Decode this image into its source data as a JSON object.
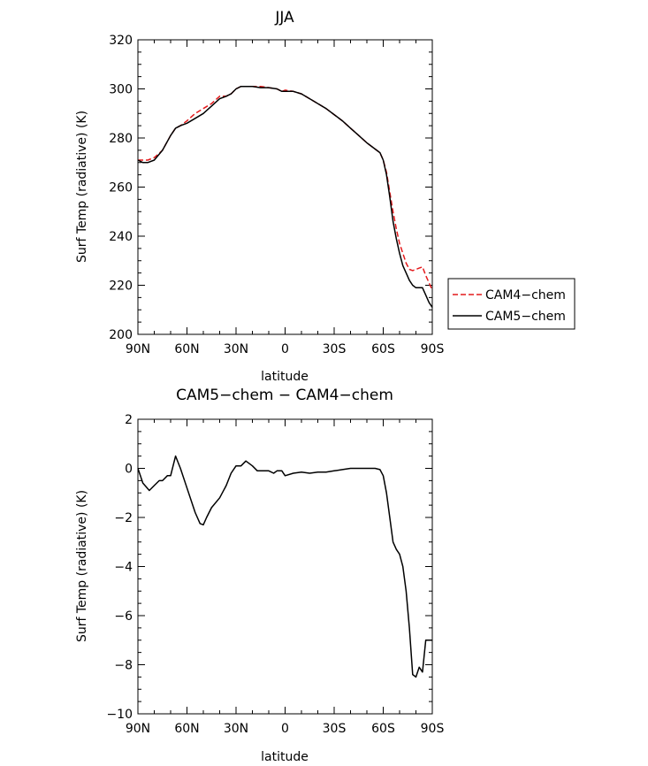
{
  "chart_data": [
    {
      "type": "line",
      "title": "JJA",
      "xlabel": "latitude",
      "ylabel": "Surf Temp (radiative) (K)",
      "xlim": [
        90,
        -90
      ],
      "ylim": [
        200,
        320
      ],
      "x_ticks": [
        90,
        60,
        30,
        0,
        -30,
        -60,
        -90
      ],
      "x_tick_labels": [
        "90N",
        "60N",
        "30N",
        "0",
        "30S",
        "60S",
        "90S"
      ],
      "y_ticks": [
        200,
        220,
        240,
        260,
        280,
        300,
        320
      ],
      "y_tick_labels": [
        "200",
        "220",
        "240",
        "260",
        "280",
        "300",
        "320"
      ],
      "legend_position": "right",
      "series": [
        {
          "name": "CAM4−chem",
          "color": "#e41a1c",
          "dash": "dashed",
          "x": [
            90,
            87,
            84,
            80,
            75,
            70,
            67,
            64,
            60,
            55,
            50,
            45,
            40,
            36,
            33,
            30,
            27,
            24,
            20,
            15,
            10,
            5,
            2,
            0,
            -5,
            -10,
            -15,
            -20,
            -25,
            -30,
            -35,
            -40,
            -45,
            -50,
            -55,
            -58,
            -60,
            -62,
            -64,
            -66,
            -68,
            -70,
            -72,
            -74,
            -76,
            -78,
            -80,
            -82,
            -84,
            -86,
            -88,
            -90
          ],
          "values": [
            271,
            271,
            271,
            272,
            275,
            281,
            284,
            285,
            287,
            290,
            292,
            294,
            297,
            297,
            298,
            300,
            301,
            301,
            301,
            301,
            300.5,
            300,
            299,
            299.5,
            299,
            298,
            296,
            294,
            292,
            289.5,
            287,
            284,
            281,
            278,
            275.5,
            274,
            271,
            266,
            258,
            250,
            243,
            237,
            233,
            229,
            226.5,
            226,
            226.5,
            227,
            227.5,
            224,
            221,
            218
          ]
        },
        {
          "name": "CAM5−chem",
          "color": "#000000",
          "dash": "solid",
          "x": [
            90,
            87,
            84,
            80,
            75,
            70,
            67,
            64,
            60,
            55,
            50,
            45,
            40,
            36,
            33,
            30,
            27,
            24,
            20,
            15,
            10,
            5,
            2,
            0,
            -5,
            -10,
            -15,
            -20,
            -25,
            -30,
            -35,
            -40,
            -45,
            -50,
            -55,
            -58,
            -60,
            -62,
            -64,
            -66,
            -68,
            -70,
            -72,
            -74,
            -76,
            -78,
            -80,
            -82,
            -84,
            -86,
            -88,
            -90
          ],
          "values": [
            271,
            270,
            270,
            271,
            275,
            281,
            284,
            285,
            286,
            288,
            290,
            293,
            296,
            297,
            298,
            300,
            301,
            301,
            301,
            300.5,
            300.5,
            300,
            299,
            299,
            299,
            298,
            296,
            294,
            292,
            289.5,
            287,
            284,
            281,
            278,
            275.5,
            274,
            271,
            265,
            256,
            246,
            239,
            233,
            228,
            225,
            222,
            220,
            219,
            219,
            219,
            216,
            213,
            211
          ]
        }
      ]
    },
    {
      "type": "line",
      "title": "CAM5−chem − CAM4−chem",
      "xlabel": "latitude",
      "ylabel": "Surf Temp (radiative) (K)",
      "xlim": [
        90,
        -90
      ],
      "ylim": [
        -10,
        2
      ],
      "x_ticks": [
        90,
        60,
        30,
        0,
        -30,
        -60,
        -90
      ],
      "x_tick_labels": [
        "90N",
        "60N",
        "30N",
        "0",
        "30S",
        "60S",
        "90S"
      ],
      "y_ticks": [
        -10,
        -8,
        -6,
        -4,
        -2,
        0,
        2
      ],
      "y_tick_labels": [
        "−10",
        "−8",
        "−6",
        "−4",
        "−2",
        "0",
        "2"
      ],
      "series": [
        {
          "color": "#000000",
          "dash": "solid",
          "x": [
            90,
            87,
            83,
            80,
            77,
            75,
            72,
            70,
            67,
            64,
            60,
            55,
            52,
            50,
            48,
            45,
            40,
            36,
            33,
            30,
            27,
            24,
            20,
            17,
            15,
            10,
            7,
            5,
            2,
            0,
            -5,
            -10,
            -15,
            -20,
            -25,
            -30,
            -35,
            -40,
            -45,
            -50,
            -55,
            -58,
            -60,
            -62,
            -64,
            -66,
            -68,
            -70,
            -72,
            -74,
            -76,
            -78,
            -80,
            -82,
            -84,
            -86,
            -88,
            -90
          ],
          "values": [
            0,
            -0.6,
            -0.9,
            -0.7,
            -0.5,
            -0.5,
            -0.3,
            -0.3,
            0.5,
            0,
            -0.8,
            -1.8,
            -2.25,
            -2.3,
            -2.0,
            -1.6,
            -1.2,
            -0.7,
            -0.2,
            0.1,
            0.1,
            0.3,
            0.1,
            -0.1,
            -0.1,
            -0.1,
            -0.2,
            -0.1,
            -0.1,
            -0.3,
            -0.2,
            -0.15,
            -0.2,
            -0.15,
            -0.15,
            -0.1,
            -0.05,
            0,
            0,
            0,
            0,
            -0.05,
            -0.3,
            -1.0,
            -2.0,
            -3.0,
            -3.3,
            -3.5,
            -4.0,
            -5.0,
            -6.5,
            -8.4,
            -8.5,
            -8.1,
            -8.3,
            -7.0,
            -7.0,
            -7.0
          ]
        }
      ]
    }
  ]
}
